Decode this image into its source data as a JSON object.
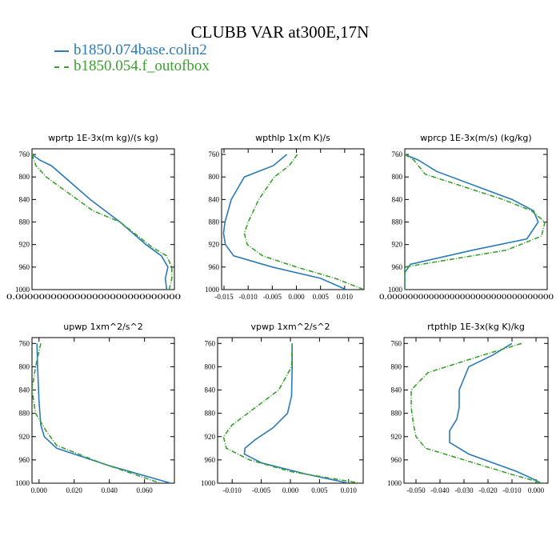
{
  "header": {
    "title": "CLUBB VAR at300E,17N"
  },
  "legend": [
    {
      "label": "b1850.074base.colin2",
      "color": "#2a7ab8",
      "style": "solid"
    },
    {
      "label": "b1850.054.f_outofbox",
      "color": "#3aa02c",
      "style": "dashed"
    }
  ],
  "chart_data": [
    {
      "type": "line",
      "title": "wprtp  1E-3x(m kg)/(s kg)",
      "xlim": [
        0.0,
        0.00011
      ],
      "ylim": [
        1000,
        750
      ],
      "yticks": [
        760,
        800,
        840,
        880,
        920,
        960,
        1000
      ],
      "xticks": [
        0.0
      ],
      "xtick_labels": [
        "0.0000000000000000000000000000"
      ],
      "series": [
        {
          "name": "b1850.074base.colin2",
          "x": [
            0.0,
            6e-06,
            1.5e-05,
            4.5e-05,
            6.8e-05,
            8.8e-05,
            0.0001,
            0.000105,
            0.000103,
            0.000104
          ],
          "y": [
            760,
            770,
            780,
            840,
            880,
            920,
            940,
            960,
            980,
            1000
          ]
        },
        {
          "name": "b1850.054.f_outofbox",
          "x": [
            0.0,
            3e-06,
            1.1e-05,
            4.7e-05,
            6.8e-05,
            9.3e-05,
            0.000104,
            0.000108,
            0.000108,
            0.000106
          ],
          "y": [
            760,
            780,
            800,
            860,
            880,
            925,
            940,
            960,
            980,
            1000
          ]
        }
      ]
    },
    {
      "type": "line",
      "title": "wpthlp  1x(m K)/s",
      "xlim": [
        -0.0155,
        0.014
      ],
      "ylim": [
        1000,
        750
      ],
      "yticks": [
        760,
        800,
        840,
        880,
        920,
        960,
        1000
      ],
      "xticks": [
        -0.015,
        -0.01,
        -0.005,
        0.0,
        0.005,
        0.01
      ],
      "xtick_labels": [
        "-0.015",
        "-0.010",
        "-0.005",
        "0.000",
        "0.005",
        "0.010"
      ],
      "series": [
        {
          "name": "b1850.074base.colin2",
          "x": [
            -0.002,
            -0.0048,
            -0.0108,
            -0.0135,
            -0.0148,
            -0.0151,
            -0.0147,
            -0.013,
            -0.005,
            0.005,
            0.0103
          ],
          "y": [
            760,
            780,
            800,
            840,
            880,
            900,
            920,
            940,
            960,
            980,
            1000
          ]
        },
        {
          "name": "b1850.054.f_outofbox",
          "x": [
            0.0002,
            -0.0015,
            -0.0046,
            -0.0078,
            -0.01,
            -0.0108,
            -0.0102,
            -0.007,
            0.0,
            0.008,
            0.014
          ],
          "y": [
            760,
            780,
            800,
            840,
            880,
            900,
            920,
            940,
            960,
            980,
            1000
          ]
        }
      ]
    },
    {
      "type": "line",
      "title": "wprcp  1E-3x(m/s) (kg/kg)",
      "xlim": [
        0.0,
        1.26e-05
      ],
      "ylim": [
        1000,
        750
      ],
      "yticks": [
        760,
        800,
        840,
        880,
        920,
        960,
        1000
      ],
      "xticks": [
        0.0
      ],
      "xtick_labels": [
        "0.00000000000000000000000000000000"
      ],
      "series": [
        {
          "name": "b1850.074base.colin2",
          "x": [
            0.0,
            1.2e-06,
            2.8e-06,
            9.5e-06,
            1.14e-05,
            1.18e-05,
            1.08e-05,
            6e-06,
            5e-07,
            0.0,
            0.0
          ],
          "y": [
            760,
            770,
            790,
            840,
            860,
            880,
            910,
            930,
            955,
            970,
            1000
          ]
        },
        {
          "name": "b1850.054.f_outofbox",
          "x": [
            0.0,
            8e-07,
            1.8e-06,
            8.7e-06,
            1.12e-05,
            1.24e-05,
            1.21e-05,
            9e-06,
            0.0,
            0.0
          ],
          "y": [
            760,
            770,
            795,
            840,
            860,
            880,
            905,
            930,
            960,
            1000
          ]
        }
      ]
    },
    {
      "type": "line",
      "title": "upwp  1xm^2/s^2",
      "xlim": [
        -0.004,
        0.077
      ],
      "ylim": [
        1000,
        750
      ],
      "yticks": [
        760,
        800,
        840,
        880,
        920,
        960,
        1000
      ],
      "xticks": [
        0.0,
        0.02,
        0.04,
        0.06
      ],
      "xtick_labels": [
        "0.000",
        "0.020",
        "0.040",
        "0.060"
      ],
      "series": [
        {
          "name": "b1850.074base.colin2",
          "x": [
            -0.0012,
            -0.0008,
            0.0,
            0.001,
            0.003,
            0.01,
            0.04,
            0.075
          ],
          "y": [
            760,
            800,
            860,
            900,
            920,
            940,
            970,
            1000
          ]
        },
        {
          "name": "b1850.054.f_outofbox",
          "x": [
            0.001,
            -0.002,
            -0.004,
            -0.002,
            0.004,
            0.01,
            0.035,
            0.069
          ],
          "y": [
            760,
            800,
            840,
            880,
            910,
            935,
            965,
            1000
          ]
        }
      ]
    },
    {
      "type": "line",
      "title": "vpwp  1xm^2/s^2",
      "xlim": [
        -0.0125,
        0.0125
      ],
      "ylim": [
        1000,
        750
      ],
      "yticks": [
        760,
        800,
        840,
        880,
        920,
        960,
        1000
      ],
      "xticks": [
        -0.01,
        -0.005,
        0.0,
        0.005,
        0.01
      ],
      "xtick_labels": [
        "-0.010",
        "-0.005",
        "0.000",
        "0.005",
        "0.010"
      ],
      "series": [
        {
          "name": "b1850.074base.colin2",
          "x": [
            0.0003,
            0.0003,
            0.0002,
            -0.0005,
            -0.003,
            -0.006,
            -0.0078,
            -0.0079,
            -0.005,
            0.003,
            0.01
          ],
          "y": [
            760,
            800,
            850,
            880,
            905,
            925,
            940,
            950,
            965,
            985,
            1000
          ]
        },
        {
          "name": "b1850.054.f_outofbox",
          "x": [
            0.0003,
            0.0002,
            -0.002,
            -0.006,
            -0.01,
            -0.0115,
            -0.011,
            -0.007,
            0.0,
            0.012
          ],
          "y": [
            760,
            800,
            840,
            870,
            900,
            920,
            940,
            960,
            980,
            1000
          ]
        }
      ]
    },
    {
      "type": "line",
      "title": "rtpthlp  1E-3x(kg K)/kg",
      "xlim": [
        -0.055,
        0.005
      ],
      "ylim": [
        1000,
        750
      ],
      "yticks": [
        760,
        800,
        840,
        880,
        920,
        960,
        1000
      ],
      "xticks": [
        -0.05,
        -0.04,
        -0.03,
        -0.02,
        -0.01,
        0.0
      ],
      "xtick_labels": [
        "-0.050",
        "-0.040",
        "-0.030",
        "-0.020",
        "-0.010",
        "0.000"
      ],
      "series": [
        {
          "name": "b1850.074base.colin2",
          "x": [
            -0.01,
            -0.018,
            -0.028,
            -0.032,
            -0.032,
            -0.033,
            -0.036,
            -0.036,
            -0.028,
            -0.008,
            0.0,
            0.002
          ],
          "y": [
            760,
            780,
            800,
            840,
            870,
            890,
            910,
            930,
            950,
            980,
            995,
            1000
          ]
        },
        {
          "name": "b1850.054.f_outofbox",
          "x": [
            -0.006,
            -0.022,
            -0.045,
            -0.052,
            -0.052,
            -0.051,
            -0.05,
            -0.046,
            -0.03,
            -0.01,
            0.003
          ],
          "y": [
            760,
            780,
            810,
            840,
            870,
            900,
            920,
            940,
            960,
            985,
            1000
          ]
        }
      ]
    }
  ]
}
